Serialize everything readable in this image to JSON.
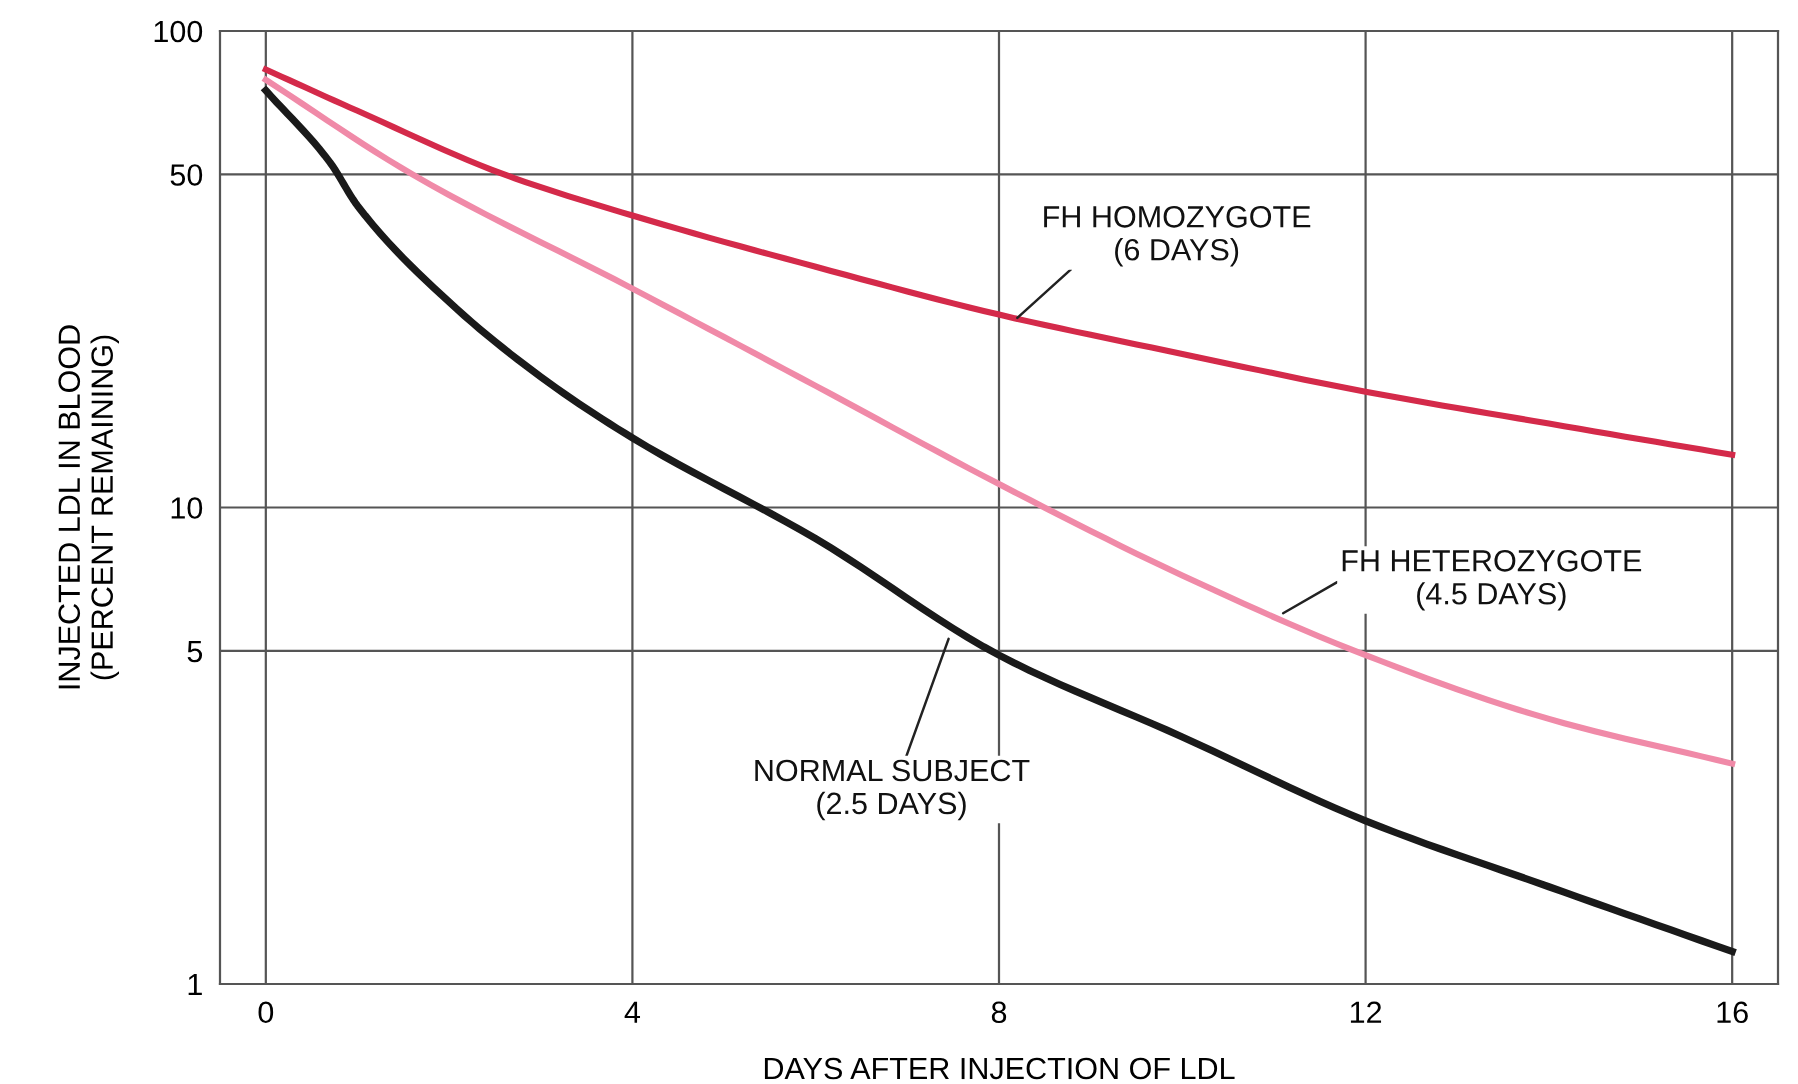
{
  "chart_data": {
    "type": "line",
    "xlabel": "DAYS AFTER INJECTION OF LDL",
    "ylabel": "INJECTED LDL IN BLOOD\n(PERCENT REMAINING)",
    "log": "y",
    "xlim": [
      -0.5,
      16.5
    ],
    "xticks": [
      0,
      4,
      8,
      12,
      16
    ],
    "ylim": [
      1,
      100
    ],
    "yticks": [
      1,
      5,
      10,
      50,
      100
    ],
    "grid": true,
    "legend": false,
    "marker": "none",
    "line_style": "solid",
    "series": [
      {
        "color": "#d42a4a",
        "x": [
          0,
          1,
          2.6,
          4,
          6,
          8,
          10,
          12,
          14,
          16
        ],
        "values": [
          83,
          68,
          50,
          41,
          32,
          25.4,
          21,
          17.5,
          15,
          12.9
        ]
      },
      {
        "color": "#f08aa8",
        "x": [
          0,
          1.6,
          4,
          6,
          8,
          10,
          12,
          14,
          16
        ],
        "values": [
          79,
          50,
          28.8,
          18,
          11.2,
          7.2,
          4.9,
          3.6,
          2.9
        ]
      },
      {
        "color": "#1a1a1a",
        "x": [
          0,
          0.7,
          1,
          2,
          3,
          4,
          6,
          8,
          10,
          12,
          14,
          16
        ],
        "values": [
          75,
          53,
          43,
          27,
          18.8,
          14,
          8.6,
          4.9,
          3.3,
          2.2,
          1.6,
          1.17
        ]
      }
    ],
    "annotations": [
      {
        "text": "FH HOMOZYGOTE\n(6 DAYS)",
        "x": 8.2,
        "y": 25
      },
      {
        "text": "FH HETEROZYGOTE\n(4.5 DAYS)",
        "x": 11.1,
        "y": 6
      },
      {
        "text": "NORMAL SUBJECT\n(2.5 DAYS)",
        "x": 7.45,
        "y": 5.3
      }
    ]
  }
}
